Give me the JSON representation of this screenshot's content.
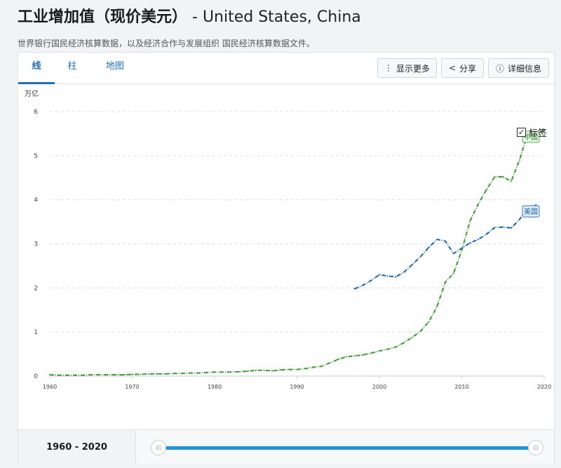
{
  "header": {
    "title_main": "工业增加值（现价美元）",
    "title_countries": " - United States, China",
    "source": "世界银行国民经济核算数据，以及经济合作与发展组织 国民经济核算数据文件。"
  },
  "tabs": [
    {
      "label": "线",
      "active": true
    },
    {
      "label": "柱",
      "active": false
    },
    {
      "label": "地图",
      "active": false
    }
  ],
  "toolbar": {
    "more_label": "显示更多",
    "more_icon": "vertical-dots-icon",
    "share_label": "分享",
    "share_icon": "share-icon",
    "details_label": "详细信息",
    "details_icon": "info-icon"
  },
  "legend_toggle": {
    "label": "标签",
    "checked": true
  },
  "footer": {
    "range_label": "1960 - 2020"
  },
  "slider": {
    "start_year": 1960,
    "end_year": 2020
  },
  "colors": {
    "china": "#3a9a32",
    "usa": "#1565a8",
    "accent": "#2196d6"
  },
  "chart_data": {
    "type": "line",
    "ylabel": "万亿",
    "ylim": [
      0,
      6
    ],
    "xlim": [
      1960,
      2020
    ],
    "yticks": [
      0,
      1,
      2,
      3,
      4,
      5,
      6
    ],
    "xticks": [
      1960,
      1970,
      1980,
      1990,
      2000,
      2010,
      2020
    ],
    "grid": true,
    "series": [
      {
        "name": "中国",
        "color": "#3a9a32",
        "x": [
          1960,
          1961,
          1962,
          1963,
          1964,
          1965,
          1966,
          1967,
          1968,
          1969,
          1970,
          1971,
          1972,
          1973,
          1974,
          1975,
          1976,
          1977,
          1978,
          1979,
          1980,
          1981,
          1982,
          1983,
          1984,
          1985,
          1986,
          1987,
          1988,
          1989,
          1990,
          1991,
          1992,
          1993,
          1994,
          1995,
          1996,
          1997,
          1998,
          1999,
          2000,
          2001,
          2002,
          2003,
          2004,
          2005,
          2006,
          2007,
          2008,
          2009,
          2010,
          2011,
          2012,
          2013,
          2014,
          2015,
          2016,
          2017,
          2018,
          2019,
          2020
        ],
        "y": [
          0.03,
          0.02,
          0.02,
          0.02,
          0.02,
          0.03,
          0.03,
          0.03,
          0.03,
          0.03,
          0.04,
          0.04,
          0.05,
          0.05,
          0.05,
          0.06,
          0.06,
          0.07,
          0.07,
          0.08,
          0.09,
          0.09,
          0.09,
          0.1,
          0.11,
          0.13,
          0.13,
          0.12,
          0.14,
          0.15,
          0.15,
          0.17,
          0.2,
          0.22,
          0.3,
          0.38,
          0.44,
          0.46,
          0.48,
          0.52,
          0.57,
          0.61,
          0.66,
          0.76,
          0.88,
          1.02,
          1.23,
          1.58,
          2.13,
          2.33,
          2.85,
          3.52,
          3.9,
          4.23,
          4.52,
          4.52,
          4.42,
          4.9,
          5.5,
          5.5,
          5.57
        ]
      },
      {
        "name": "美国",
        "color": "#1565a8",
        "x": [
          1997,
          1998,
          1999,
          2000,
          2001,
          2002,
          2003,
          2004,
          2005,
          2006,
          2007,
          2008,
          2009,
          2010,
          2011,
          2012,
          2013,
          2014,
          2015,
          2016,
          2017,
          2018,
          2019
        ],
        "y": [
          1.98,
          2.06,
          2.17,
          2.3,
          2.27,
          2.25,
          2.36,
          2.53,
          2.71,
          2.92,
          3.1,
          3.06,
          2.78,
          2.9,
          3.02,
          3.1,
          3.22,
          3.37,
          3.38,
          3.36,
          3.55,
          3.82,
          3.88
        ]
      }
    ]
  }
}
